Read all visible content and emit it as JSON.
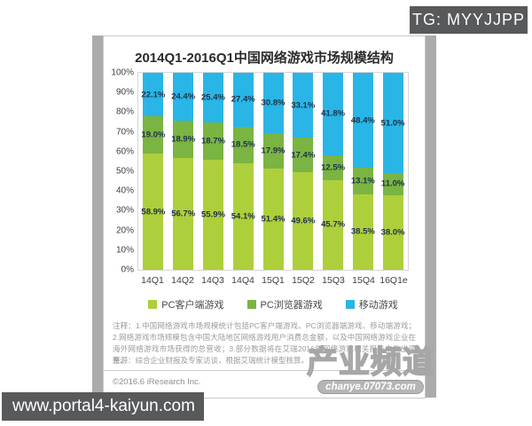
{
  "watermarks": {
    "tg_label": "TG: MYYJJPP",
    "site_url": "www.portal4-kaiyun.com",
    "chanye_logo": "产业频道",
    "chanye_url": "chanye.07073.com"
  },
  "chart": {
    "title": "2014Q1-2016Q1中国网络游戏市场规模结构",
    "notes": "注释：1.中国网络游戏市场规模统计包括PC客户端游戏、PC浏览器端游戏、移动端游戏；2.网络游戏市场规模包含中国大陆地区网络游戏用户消费总金额，以及中国网络游戏企业在海外网络游戏市场获得的总营收；3.部分数据将在艾瑞2016年网络游戏相关报告中做出调整。",
    "source": "来源：综合企业财报及专家访谈，根据艾瑞统计模型核算。",
    "copyright": "©2016.6 iResearch Inc."
  },
  "chart_data": {
    "type": "bar",
    "stacked": true,
    "title": "2014Q1-2016Q1中国网络游戏市场规模结构",
    "categories": [
      "14Q1",
      "14Q2",
      "14Q3",
      "14Q4",
      "15Q1",
      "15Q2",
      "15Q3",
      "15Q4",
      "16Q1e"
    ],
    "series": [
      {
        "name": "PC客户端游戏",
        "color": "#aecf3c",
        "values": [
          58.9,
          56.7,
          55.9,
          54.1,
          51.4,
          49.6,
          45.7,
          38.5,
          38.0
        ]
      },
      {
        "name": "PC浏览器游戏",
        "color": "#7ab442",
        "values": [
          19.0,
          18.9,
          18.7,
          18.5,
          17.9,
          17.4,
          12.5,
          13.1,
          11.0
        ]
      },
      {
        "name": "移动游戏",
        "color": "#29b5e6",
        "values": [
          22.1,
          24.4,
          25.4,
          27.4,
          30.8,
          33.1,
          41.8,
          48.4,
          51.0
        ]
      }
    ],
    "y_ticks": [
      "100%",
      "90%",
      "80%",
      "70%",
      "60%",
      "50%",
      "40%",
      "30%",
      "20%",
      "10%",
      "0%"
    ],
    "ylim": [
      0,
      100
    ],
    "value_suffix": "%",
    "legend_position": "bottom",
    "grid": false
  }
}
